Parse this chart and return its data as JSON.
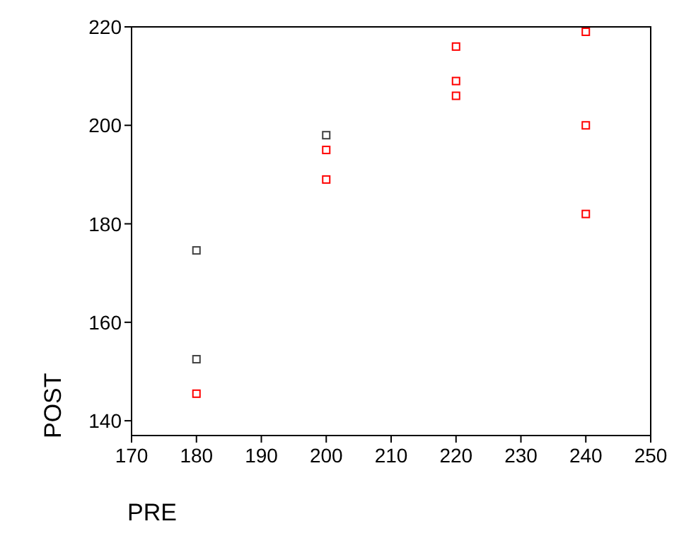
{
  "chart_data": {
    "type": "scatter",
    "xlabel": "PRE",
    "ylabel": "POST",
    "marker": "square",
    "xlim": [
      170,
      250
    ],
    "xticks": [
      170,
      180,
      190,
      200,
      210,
      220,
      230,
      240,
      250
    ],
    "ylim": [
      137,
      220
    ],
    "yticks": [
      140,
      160,
      180,
      200,
      220
    ],
    "grid": false,
    "series": [
      {
        "color": "#404040",
        "x": [
          180,
          180,
          200
        ],
        "values": [
          174.6,
          152.5,
          198
        ]
      },
      {
        "color": "#ff0000",
        "x": [
          180,
          200,
          200,
          220,
          220,
          220,
          240,
          240,
          240
        ],
        "values": [
          145.5,
          195,
          189,
          216,
          209,
          206,
          219,
          200,
          182
        ]
      }
    ]
  }
}
